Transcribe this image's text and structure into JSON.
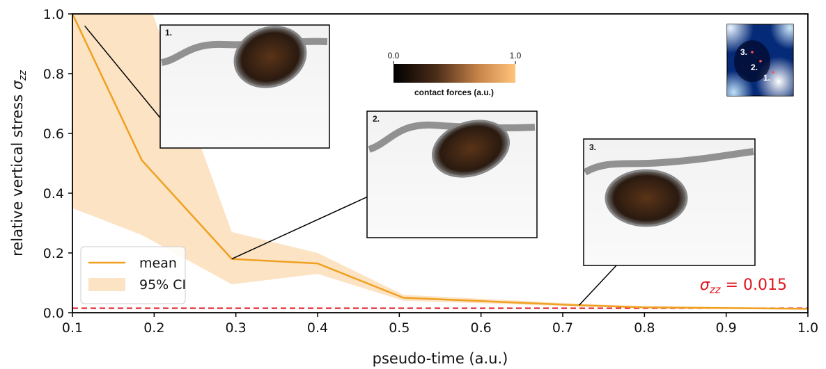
{
  "chart_data": {
    "type": "line",
    "x": [
      0.1,
      0.185,
      0.295,
      0.4,
      0.505,
      0.72,
      0.8,
      1.0
    ],
    "series": [
      {
        "name": "mean",
        "values": [
          1.0,
          0.51,
          0.18,
          0.165,
          0.05,
          0.025,
          0.018,
          0.013
        ],
        "color": "#f0a020"
      },
      {
        "name": "95% CI",
        "type": "band",
        "upper": [
          1.1,
          1.1,
          0.27,
          0.2,
          0.06,
          0.03,
          0.022,
          0.016
        ],
        "lower": [
          0.35,
          0.26,
          0.095,
          0.13,
          0.04,
          0.021,
          0.015,
          0.011
        ],
        "color": "#fce3c4"
      }
    ],
    "threshold": {
      "value": 0.015,
      "label_symbol": "σ",
      "label_sub": "zz",
      "label_rest": " = 0.015",
      "color": "#e0141e"
    },
    "xlim": [
      0.1,
      1.0
    ],
    "ylim": [
      0.0,
      1.0
    ],
    "xticks": [
      "0.1",
      "0.2",
      "0.3",
      "0.4",
      "0.5",
      "0.6",
      "0.7",
      "0.8",
      "0.9",
      "1.0"
    ],
    "yticks": [
      "0.0",
      "0.2",
      "0.4",
      "0.6",
      "0.8",
      "1.0"
    ],
    "xlabel": "pseudo-time (a.u.)",
    "ylabel_main": "relative vertical stress ",
    "ylabel_symbol": "σ",
    "ylabel_sub": "zz",
    "legend": {
      "position": "lower-left",
      "items": [
        "mean",
        "95% CI"
      ]
    },
    "grid": false,
    "insets": [
      {
        "label": "1.",
        "x": 0.115,
        "y": 0.96
      },
      {
        "label": "2.",
        "x": 0.295,
        "y": 0.18
      },
      {
        "label": "3.",
        "x": 0.72,
        "y": 0.025
      }
    ],
    "colorbar": {
      "min": "0.0",
      "max": "1.0",
      "title": "contact forces (a.u.)"
    },
    "location_map": {
      "labels": [
        "3.",
        "2.",
        "1."
      ]
    }
  }
}
